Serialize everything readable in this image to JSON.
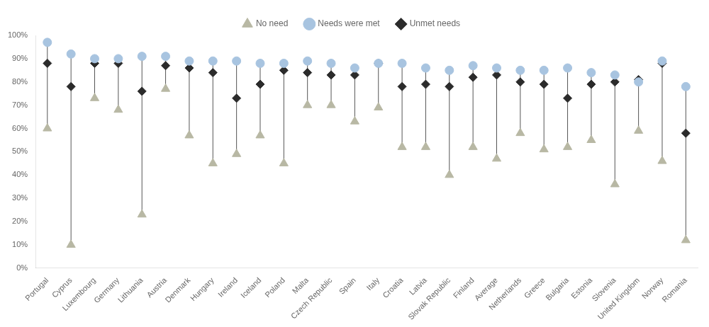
{
  "chart_data": {
    "type": "scatter",
    "categories": [
      "Portugal",
      "Cyprus",
      "Luxembourg",
      "Germany",
      "Lithuania",
      "Austria",
      "Denmark",
      "Hungary",
      "Ireland",
      "Iceland",
      "Poland",
      "Malta",
      "Czech Republic",
      "Spain",
      "Italy",
      "Croatia",
      "Latvia",
      "Slovak Republic",
      "Finland",
      "Average",
      "Netherlands",
      "Greece",
      "Bulgaria",
      "Estonia",
      "Slovenia",
      "United Kingdom",
      "Norway",
      "Romania"
    ],
    "series": [
      {
        "name": "Unmet needs",
        "color": "#2b2b2b",
        "marker": "diamond",
        "values": [
          88,
          78,
          88,
          88,
          76,
          87,
          86,
          84,
          73,
          79,
          85,
          84,
          83,
          83,
          88,
          78,
          79,
          78,
          82,
          83,
          80,
          79,
          73,
          79,
          80,
          81,
          88,
          58
        ]
      },
      {
        "name": "Needs were met",
        "color": "#a8c4e0",
        "marker": "circle",
        "values": [
          97,
          92,
          90,
          90,
          91,
          91,
          89,
          89,
          89,
          88,
          88,
          89,
          88,
          86,
          88,
          88,
          86,
          85,
          87,
          86,
          85,
          85,
          86,
          84,
          83,
          80,
          89,
          78
        ]
      },
      {
        "name": "No need",
        "color": "#b8b8a4",
        "marker": "triangle",
        "values": [
          60,
          10,
          73,
          68,
          23,
          77,
          57,
          45,
          49,
          57,
          45,
          70,
          70,
          63,
          69,
          52,
          52,
          40,
          52,
          47,
          58,
          51,
          52,
          55,
          36,
          59,
          46,
          12
        ]
      }
    ],
    "ylim": [
      0,
      100
    ],
    "yticks": [
      {
        "value": 0,
        "label": "0%"
      },
      {
        "value": 10,
        "label": "10%"
      },
      {
        "value": 20,
        "label": "20%"
      },
      {
        "value": 30,
        "label": "30%"
      },
      {
        "value": 40,
        "label": "40%"
      },
      {
        "value": 50,
        "label": "50%"
      },
      {
        "value": 60,
        "label": "60%"
      },
      {
        "value": 70,
        "label": "70%"
      },
      {
        "value": 80,
        "label": "80%"
      },
      {
        "value": 90,
        "label": "90%"
      },
      {
        "value": 100,
        "label": "100%"
      }
    ],
    "grid": false,
    "legend": "top"
  }
}
